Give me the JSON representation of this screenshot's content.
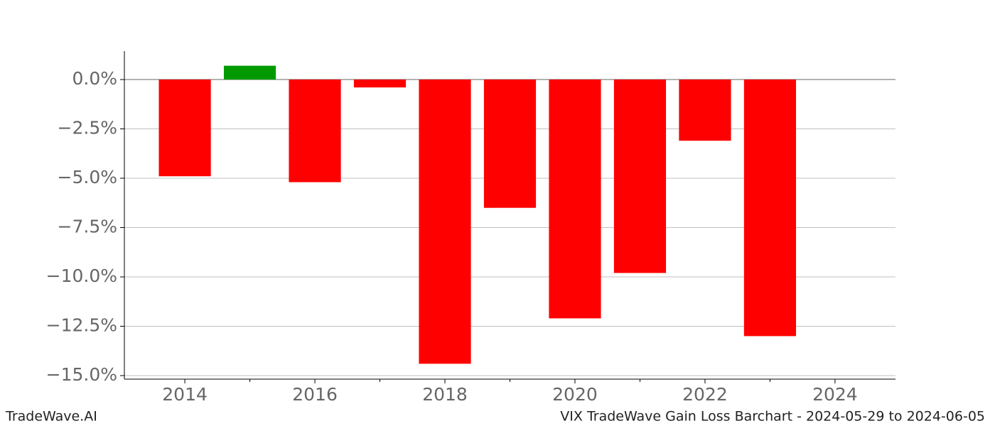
{
  "chart_data": {
    "type": "bar",
    "title": "VIX TradeWave Gain Loss Barchart - 2024-05-29 to 2024-06-05",
    "source": "TradeWave.AI",
    "x": [
      2014,
      2015,
      2016,
      2017,
      2018,
      2019,
      2020,
      2021,
      2022,
      2023
    ],
    "values": [
      -4.9,
      0.7,
      -5.2,
      -0.4,
      -14.4,
      -6.5,
      -12.1,
      -9.8,
      -3.1,
      -13.0
    ],
    "positive_color": "#009a00",
    "negative_color": "#ff0000",
    "xlim": [
      2013.07,
      2024.93
    ],
    "xticks": [
      2014,
      2016,
      2018,
      2020,
      2022,
      2024
    ],
    "xminorticks": [
      2015,
      2017,
      2019,
      2021,
      2023
    ],
    "ylim": [
      -15.18,
      1.44
    ],
    "yticks": [
      {
        "value": 0,
        "label": "0.0%"
      },
      {
        "value": -2.5,
        "label": "−2.5%"
      },
      {
        "value": -5,
        "label": "−5.0%"
      },
      {
        "value": -7.5,
        "label": "−7.5%"
      },
      {
        "value": -10,
        "label": "−10.0%"
      },
      {
        "value": -12.5,
        "label": "−12.5%"
      },
      {
        "value": -15,
        "label": "−15.0%"
      }
    ],
    "grid": true
  }
}
